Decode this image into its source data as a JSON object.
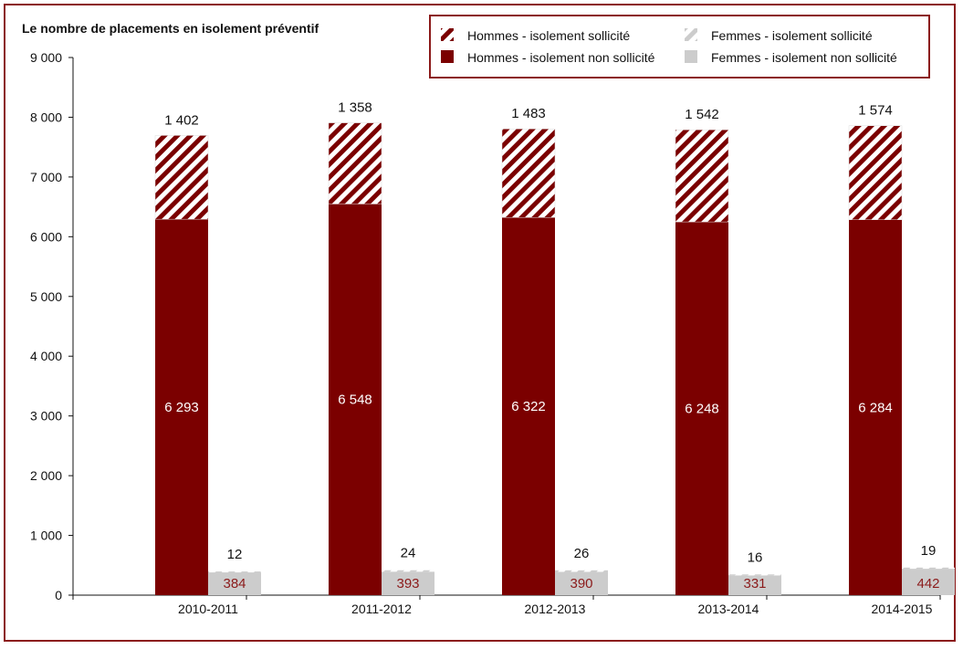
{
  "chart_data": {
    "type": "bar",
    "title": "Le nombre de placements en isolement préventif",
    "categories": [
      "2010-2011",
      "2011-2012",
      "2012-2013",
      "2013-2014",
      "2014-2015"
    ],
    "ylim": [
      0,
      9000
    ],
    "yticks": [
      0,
      1000,
      2000,
      3000,
      4000,
      5000,
      6000,
      7000,
      8000,
      9000
    ],
    "ytick_labels": [
      "0",
      "1 000",
      "2 000",
      "3 000",
      "4 000",
      "5 000",
      "6 000",
      "7 000",
      "8 000",
      "9 000"
    ],
    "stacks": [
      {
        "group": "Hommes",
        "series": [
          {
            "name": "Hommes - isolement non sollicité",
            "values": [
              6293,
              6548,
              6322,
              6248,
              6284
            ],
            "labels": [
              "6 293",
              "6 548",
              "6 322",
              "6 248",
              "6 284"
            ],
            "color": "#7b0000",
            "pattern": "solid"
          },
          {
            "name": "Hommes - isolement sollicité",
            "values": [
              1402,
              1358,
              1483,
              1542,
              1574
            ],
            "labels": [
              "1 402",
              "1 358",
              "1 483",
              "1 542",
              "1 574"
            ],
            "color": "#7b0000",
            "pattern": "hatched"
          }
        ]
      },
      {
        "group": "Femmes",
        "series": [
          {
            "name": "Femmes - isolement non sollicité",
            "values": [
              384,
              393,
              390,
              331,
              442
            ],
            "labels": [
              "384",
              "393",
              "390",
              "331",
              "442"
            ],
            "color": "#cccccc",
            "pattern": "solid"
          },
          {
            "name": "Femmes - isolement sollicité",
            "values": [
              12,
              24,
              26,
              16,
              19
            ],
            "labels": [
              "12",
              "24",
              "26",
              "16",
              "19"
            ],
            "color": "#cccccc",
            "pattern": "hatched"
          }
        ]
      }
    ],
    "legend": {
      "placement": "top-right",
      "entries": [
        {
          "label": "Hommes - isolement sollicité",
          "pattern": "hatched",
          "color": "#7b0000"
        },
        {
          "label": "Femmes - isolement sollicité",
          "pattern": "hatched",
          "color": "#cccccc"
        },
        {
          "label": "Hommes - isolement non sollicité",
          "pattern": "solid",
          "color": "#7b0000"
        },
        {
          "label": "Femmes - isolement non sollicité",
          "pattern": "solid",
          "color": "#cccccc"
        }
      ]
    },
    "grid": false
  },
  "colors": {
    "frame": "#8b1a1a",
    "men": "#7b0000",
    "women": "#cccccc",
    "women_label": "#8b1a1a"
  }
}
